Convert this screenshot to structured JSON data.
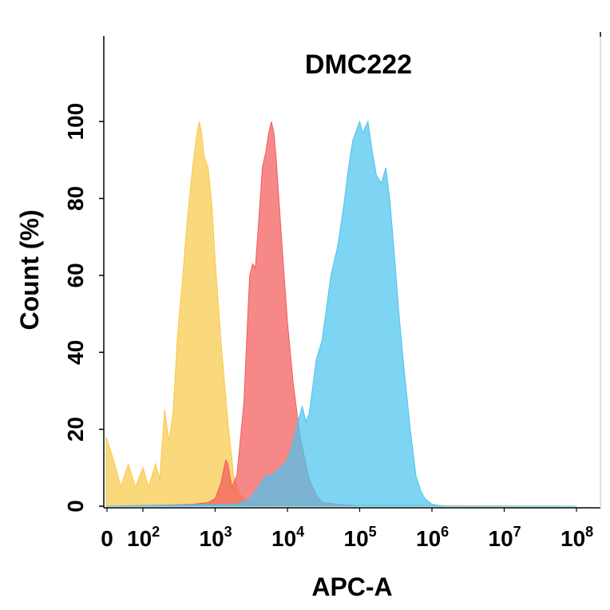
{
  "chart_data": {
    "type": "area",
    "title": "DMC222",
    "xlabel": "APC-A",
    "ylabel": "Count  (%)",
    "x_scale": "biexponential",
    "xlim": [
      0,
      100000000
    ],
    "ylim": [
      0,
      110
    ],
    "x_ticks": [
      {
        "base": "0",
        "exp": ""
      },
      {
        "base": "10",
        "exp": "2"
      },
      {
        "base": "10",
        "exp": "3"
      },
      {
        "base": "10",
        "exp": "4"
      },
      {
        "base": "10",
        "exp": "5"
      },
      {
        "base": "10",
        "exp": "6"
      },
      {
        "base": "10",
        "exp": "7"
      },
      {
        "base": "10",
        "exp": "8"
      }
    ],
    "y_ticks": [
      "0",
      "20",
      "40",
      "60",
      "80",
      "100"
    ],
    "grid": false,
    "series": [
      {
        "color": "#f8c94a",
        "values": [
          [
            0,
            18
          ],
          [
            20,
            12
          ],
          [
            40,
            5
          ],
          [
            60,
            11
          ],
          [
            80,
            5
          ],
          [
            100,
            10
          ],
          [
            120,
            5
          ],
          [
            150,
            11
          ],
          [
            170,
            7
          ],
          [
            200,
            25
          ],
          [
            230,
            17
          ],
          [
            260,
            24
          ],
          [
            300,
            44
          ],
          [
            350,
            58
          ],
          [
            400,
            72
          ],
          [
            450,
            82
          ],
          [
            500,
            90
          ],
          [
            550,
            96
          ],
          [
            600,
            100
          ],
          [
            650,
            97
          ],
          [
            700,
            91
          ],
          [
            800,
            88
          ],
          [
            900,
            78
          ],
          [
            1000,
            64
          ],
          [
            1200,
            43
          ],
          [
            1500,
            22
          ],
          [
            1800,
            8
          ],
          [
            2200,
            3
          ],
          [
            3000,
            1
          ],
          [
            5000,
            0.5
          ],
          [
            10000,
            0.4
          ],
          [
            30000,
            0.3
          ],
          [
            100000000,
            0
          ]
        ]
      },
      {
        "color": "#f35a5a",
        "values": [
          [
            0,
            0
          ],
          [
            200,
            0.3
          ],
          [
            500,
            0.5
          ],
          [
            800,
            1
          ],
          [
            1000,
            2
          ],
          [
            1200,
            6
          ],
          [
            1400,
            12
          ],
          [
            1500,
            11
          ],
          [
            1700,
            5
          ],
          [
            2000,
            8
          ],
          [
            2500,
            27
          ],
          [
            2800,
            48
          ],
          [
            3000,
            60
          ],
          [
            3300,
            63
          ],
          [
            3600,
            62
          ],
          [
            4000,
            74
          ],
          [
            4500,
            88
          ],
          [
            5000,
            92
          ],
          [
            5500,
            97
          ],
          [
            6000,
            100
          ],
          [
            6500,
            97
          ],
          [
            7000,
            90
          ],
          [
            8000,
            74
          ],
          [
            9000,
            60
          ],
          [
            10000,
            48
          ],
          [
            12000,
            32
          ],
          [
            15000,
            18
          ],
          [
            20000,
            7
          ],
          [
            25000,
            3
          ],
          [
            30000,
            1
          ],
          [
            50000,
            0.5
          ],
          [
            100000,
            0
          ],
          [
            100000000,
            0
          ]
        ]
      },
      {
        "color": "#4cc4ee",
        "values": [
          [
            0,
            0
          ],
          [
            2000,
            0.5
          ],
          [
            3000,
            2
          ],
          [
            4000,
            5
          ],
          [
            5000,
            8
          ],
          [
            6000,
            8
          ],
          [
            8000,
            10
          ],
          [
            10000,
            12
          ],
          [
            12000,
            17
          ],
          [
            14000,
            22
          ],
          [
            16000,
            26
          ],
          [
            18000,
            22
          ],
          [
            20000,
            24
          ],
          [
            25000,
            38
          ],
          [
            30000,
            43
          ],
          [
            40000,
            60
          ],
          [
            50000,
            68
          ],
          [
            60000,
            78
          ],
          [
            70000,
            88
          ],
          [
            80000,
            95
          ],
          [
            100000,
            100
          ],
          [
            110000,
            97
          ],
          [
            130000,
            100
          ],
          [
            150000,
            92
          ],
          [
            170000,
            86
          ],
          [
            200000,
            84
          ],
          [
            230000,
            88
          ],
          [
            260000,
            80
          ],
          [
            300000,
            66
          ],
          [
            350000,
            50
          ],
          [
            400000,
            38
          ],
          [
            500000,
            20
          ],
          [
            600000,
            8
          ],
          [
            700000,
            4
          ],
          [
            800000,
            2
          ],
          [
            1000000,
            0.5
          ],
          [
            1500000,
            0
          ],
          [
            100000000,
            0
          ]
        ]
      }
    ]
  }
}
